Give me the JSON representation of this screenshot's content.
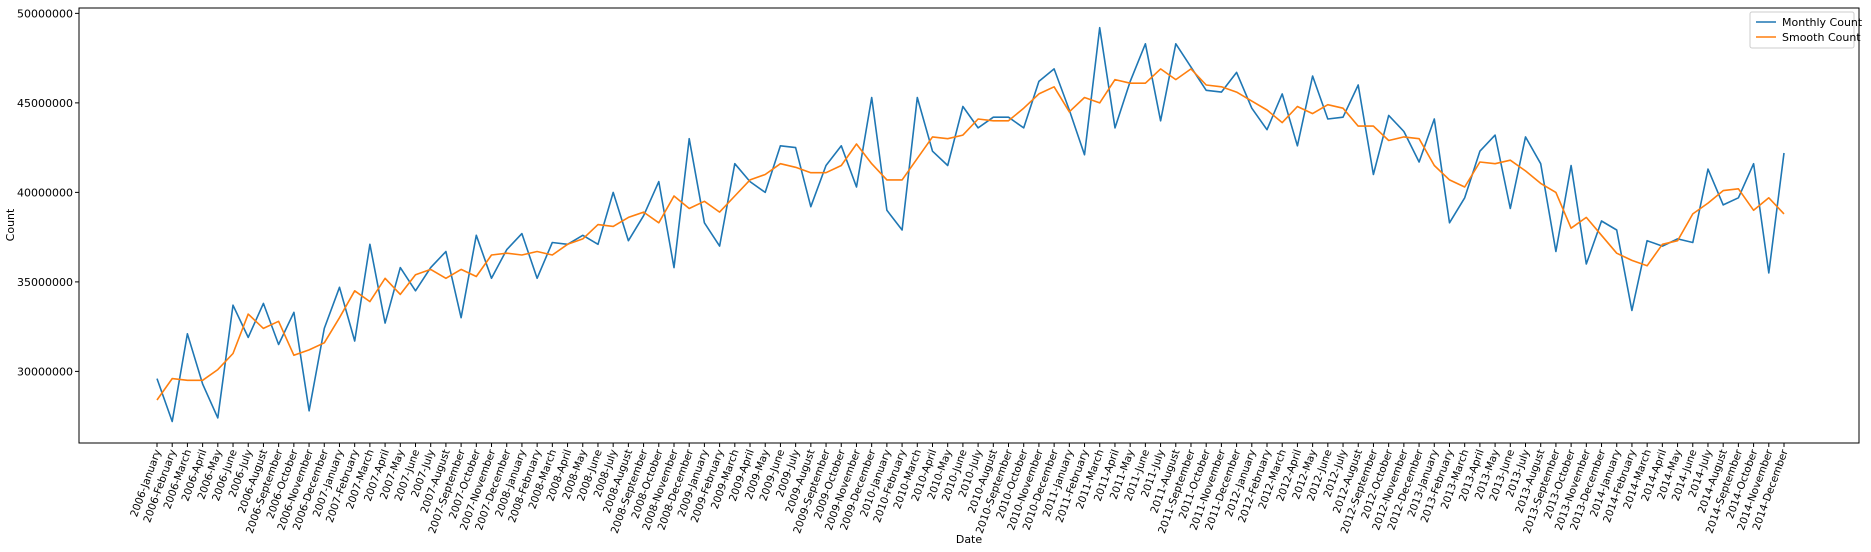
{
  "chart_data": {
    "type": "line",
    "xlabel": "Date",
    "ylabel": "Count",
    "ylim": [
      26000000,
      50300000
    ],
    "yticks": [
      30000000,
      35000000,
      40000000,
      45000000,
      50000000
    ],
    "ytick_labels": [
      "30000000",
      "35000000",
      "40000000",
      "45000000",
      "50000000"
    ],
    "legend_position": "top-right",
    "grid": false,
    "x": [
      "2006-January",
      "2006-February",
      "2006-March",
      "2006-April",
      "2006-May",
      "2006-June",
      "2006-July",
      "2006-August",
      "2006-September",
      "2006-October",
      "2006-November",
      "2006-December",
      "2007-January",
      "2007-February",
      "2007-March",
      "2007-April",
      "2007-May",
      "2007-June",
      "2007-July",
      "2007-August",
      "2007-September",
      "2007-October",
      "2007-November",
      "2007-December",
      "2008-January",
      "2008-February",
      "2008-March",
      "2008-April",
      "2008-May",
      "2008-June",
      "2008-July",
      "2008-August",
      "2008-September",
      "2008-October",
      "2008-November",
      "2008-December",
      "2009-January",
      "2009-February",
      "2009-March",
      "2009-April",
      "2009-May",
      "2009-June",
      "2009-July",
      "2009-August",
      "2009-September",
      "2009-October",
      "2009-November",
      "2009-December",
      "2010-January",
      "2010-February",
      "2010-March",
      "2010-April",
      "2010-May",
      "2010-June",
      "2010-July",
      "2010-August",
      "2010-September",
      "2010-October",
      "2010-November",
      "2010-December",
      "2011-January",
      "2011-February",
      "2011-March",
      "2011-April",
      "2011-May",
      "2011-June",
      "2011-July",
      "2011-August",
      "2011-September",
      "2011-October",
      "2011-November",
      "2011-December",
      "2012-January",
      "2012-February",
      "2012-March",
      "2012-April",
      "2012-May",
      "2012-June",
      "2012-July",
      "2012-August",
      "2012-September",
      "2012-October",
      "2012-November",
      "2012-December",
      "2013-January",
      "2013-February",
      "2013-March",
      "2013-April",
      "2013-May",
      "2013-June",
      "2013-July",
      "2013-August",
      "2013-September",
      "2013-October",
      "2013-November",
      "2013-December",
      "2014-January",
      "2014-February",
      "2014-March",
      "2014-April",
      "2014-May",
      "2014-June",
      "2014-July",
      "2014-August",
      "2014-September",
      "2014-October",
      "2014-November",
      "2014-December"
    ],
    "series": [
      {
        "name": "Monthly Count",
        "color": "#1f77b4",
        "values": [
          29600000,
          27200000,
          32100000,
          29300000,
          27400000,
          33700000,
          31900000,
          33800000,
          31500000,
          33300000,
          27800000,
          32400000,
          34700000,
          31700000,
          37100000,
          32700000,
          35800000,
          34500000,
          35800000,
          36700000,
          33000000,
          37600000,
          35200000,
          36800000,
          37700000,
          35200000,
          37200000,
          37100000,
          37600000,
          37100000,
          40000000,
          37300000,
          38700000,
          40600000,
          35800000,
          43000000,
          38300000,
          37000000,
          41600000,
          40600000,
          40000000,
          42600000,
          42500000,
          39200000,
          41500000,
          42600000,
          40300000,
          45300000,
          39000000,
          37900000,
          45300000,
          42300000,
          41500000,
          44800000,
          43600000,
          44200000,
          44200000,
          43600000,
          46200000,
          46900000,
          44600000,
          42100000,
          49200000,
          43600000,
          46200000,
          48300000,
          44000000,
          48300000,
          47000000,
          45700000,
          45600000,
          46700000,
          44700000,
          43500000,
          45500000,
          42600000,
          46500000,
          44100000,
          44200000,
          46000000,
          41000000,
          44300000,
          43400000,
          41700000,
          44100000,
          38300000,
          39700000,
          42300000,
          43200000,
          39100000,
          43100000,
          41600000,
          36700000,
          41500000,
          36000000,
          38400000,
          37900000,
          33400000,
          37300000,
          37000000,
          37400000,
          37200000,
          41300000,
          39300000,
          39700000,
          41600000,
          35500000,
          42200000
        ]
      },
      {
        "name": "Smooth Count",
        "color": "#ff7f0e",
        "values": [
          28400000,
          29600000,
          29500000,
          29500000,
          30100000,
          31000000,
          33200000,
          32400000,
          32800000,
          30900000,
          31200000,
          31600000,
          33000000,
          34500000,
          33900000,
          35200000,
          34300000,
          35400000,
          35700000,
          35200000,
          35700000,
          35300000,
          36500000,
          36600000,
          36500000,
          36700000,
          36500000,
          37100000,
          37400000,
          38200000,
          38100000,
          38600000,
          38900000,
          38300000,
          39800000,
          39100000,
          39500000,
          38900000,
          39800000,
          40700000,
          41000000,
          41600000,
          41400000,
          41100000,
          41100000,
          41500000,
          42700000,
          41600000,
          40700000,
          40700000,
          41900000,
          43100000,
          43000000,
          43200000,
          44100000,
          44000000,
          44000000,
          44700000,
          45500000,
          45900000,
          44500000,
          45300000,
          45000000,
          46300000,
          46100000,
          46100000,
          46900000,
          46300000,
          46900000,
          46000000,
          45900000,
          45600000,
          45100000,
          44600000,
          43900000,
          44800000,
          44400000,
          44900000,
          44700000,
          43700000,
          43700000,
          42900000,
          43100000,
          43000000,
          41500000,
          40700000,
          40300000,
          41700000,
          41600000,
          41800000,
          41200000,
          40500000,
          40000000,
          38000000,
          38600000,
          37600000,
          36600000,
          36200000,
          35900000,
          37100000,
          37300000,
          38800000,
          39400000,
          40100000,
          40200000,
          39000000,
          39700000,
          38800000
        ]
      }
    ]
  }
}
